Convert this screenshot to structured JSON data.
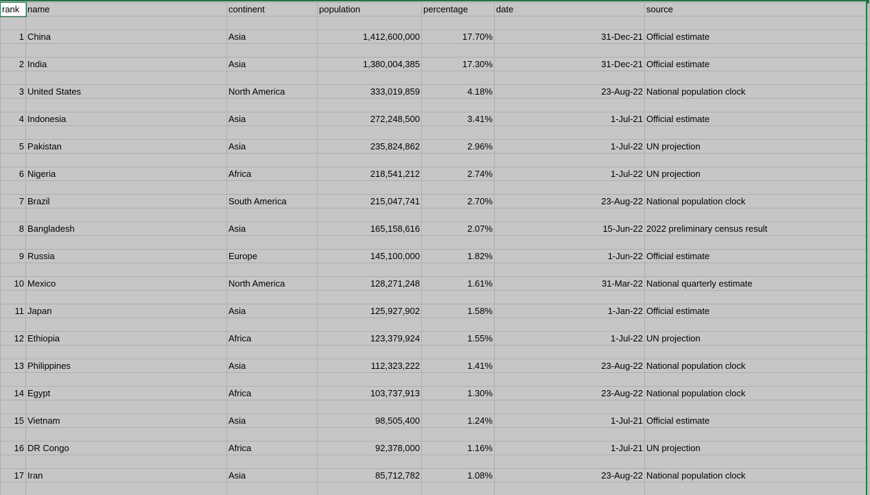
{
  "headers": [
    "rank",
    "name",
    "continent",
    "population",
    "percentage",
    "date",
    "source"
  ],
  "rows": [
    {
      "rank": "1",
      "name": "China",
      "continent": "Asia",
      "population": "1,412,600,000",
      "percentage": "17.70%",
      "date": "31-Dec-21",
      "source": "Official estimate"
    },
    {
      "rank": "2",
      "name": "India",
      "continent": "Asia",
      "population": "1,380,004,385",
      "percentage": "17.30%",
      "date": "31-Dec-21",
      "source": "Official estimate"
    },
    {
      "rank": "3",
      "name": "United States",
      "continent": "North America",
      "population": "333,019,859",
      "percentage": "4.18%",
      "date": "23-Aug-22",
      "source": "National population clock"
    },
    {
      "rank": "4",
      "name": "Indonesia",
      "continent": "Asia",
      "population": "272,248,500",
      "percentage": "3.41%",
      "date": "1-Jul-21",
      "source": "Official estimate"
    },
    {
      "rank": "5",
      "name": "Pakistan",
      "continent": "Asia",
      "population": "235,824,862",
      "percentage": "2.96%",
      "date": "1-Jul-22",
      "source": "UN projection"
    },
    {
      "rank": "6",
      "name": "Nigeria",
      "continent": "Africa",
      "population": "218,541,212",
      "percentage": "2.74%",
      "date": "1-Jul-22",
      "source": "UN projection"
    },
    {
      "rank": "7",
      "name": "Brazil",
      "continent": "South America",
      "population": "215,047,741",
      "percentage": "2.70%",
      "date": "23-Aug-22",
      "source": "National population clock"
    },
    {
      "rank": "8",
      "name": "Bangladesh",
      "continent": "Asia",
      "population": "165,158,616",
      "percentage": "2.07%",
      "date": "15-Jun-22",
      "source": "2022 preliminary census result"
    },
    {
      "rank": "9",
      "name": "Russia",
      "continent": "Europe",
      "population": "145,100,000",
      "percentage": "1.82%",
      "date": "1-Jun-22",
      "source": "Official estimate"
    },
    {
      "rank": "10",
      "name": "Mexico",
      "continent": "North America",
      "population": "128,271,248",
      "percentage": "1.61%",
      "date": "31-Mar-22",
      "source": "National quarterly estimate"
    },
    {
      "rank": "11",
      "name": "Japan",
      "continent": "Asia",
      "population": "125,927,902",
      "percentage": "1.58%",
      "date": "1-Jan-22",
      "source": "Official estimate"
    },
    {
      "rank": "12",
      "name": "Ethiopia",
      "continent": "Africa",
      "population": "123,379,924",
      "percentage": "1.55%",
      "date": "1-Jul-22",
      "source": "UN projection"
    },
    {
      "rank": "13",
      "name": "Philippines",
      "continent": "Asia",
      "population": "112,323,222",
      "percentage": "1.41%",
      "date": "23-Aug-22",
      "source": "National population clock"
    },
    {
      "rank": "14",
      "name": "Egypt",
      "continent": "Africa",
      "population": "103,737,913",
      "percentage": "1.30%",
      "date": "23-Aug-22",
      "source": "National population clock"
    },
    {
      "rank": "15",
      "name": "Vietnam",
      "continent": "Asia",
      "population": "98,505,400",
      "percentage": "1.24%",
      "date": "1-Jul-21",
      "source": "Official estimate"
    },
    {
      "rank": "16",
      "name": "DR Congo",
      "continent": "Africa",
      "population": "92,378,000",
      "percentage": "1.16%",
      "date": "1-Jul-21",
      "source": "UN projection"
    },
    {
      "rank": "17",
      "name": "Iran",
      "continent": "Asia",
      "population": "85,712,782",
      "percentage": "1.08%",
      "date": "23-Aug-22",
      "source": "National population clock"
    }
  ]
}
